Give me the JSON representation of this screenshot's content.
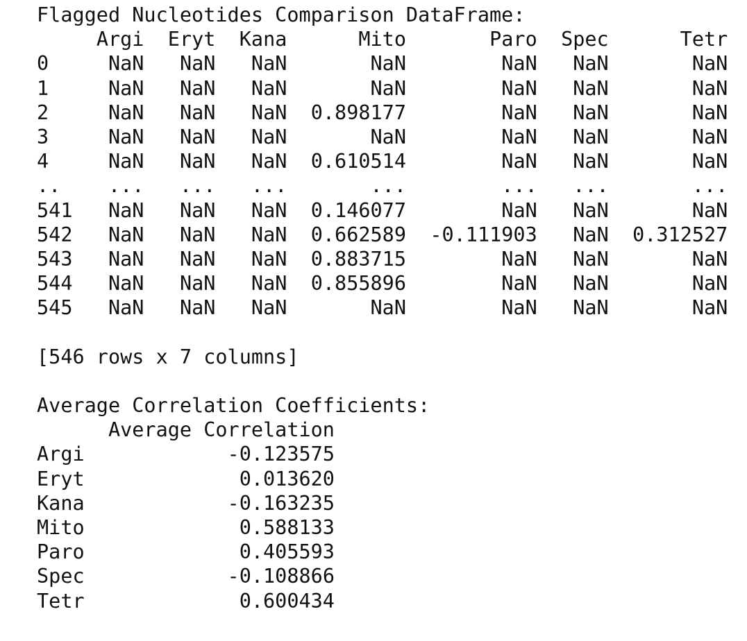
{
  "output": {
    "clipped_top_line": "",
    "df_title": "Flagged Nucleotides Comparison DataFrame:",
    "df_columns": [
      "Argi",
      "Eryt",
      "Kana",
      "Mito",
      "Paro",
      "Spec",
      "Tetr"
    ],
    "df_rows": [
      [
        "0",
        "NaN",
        "NaN",
        "NaN",
        "NaN",
        "NaN",
        "NaN",
        "NaN"
      ],
      [
        "1",
        "NaN",
        "NaN",
        "NaN",
        "NaN",
        "NaN",
        "NaN",
        "NaN"
      ],
      [
        "2",
        "NaN",
        "NaN",
        "NaN",
        "0.898177",
        "NaN",
        "NaN",
        "NaN"
      ],
      [
        "3",
        "NaN",
        "NaN",
        "NaN",
        "NaN",
        "NaN",
        "NaN",
        "NaN"
      ],
      [
        "4",
        "NaN",
        "NaN",
        "NaN",
        "0.610514",
        "NaN",
        "NaN",
        "NaN"
      ],
      [
        "..",
        "...",
        "...",
        "...",
        "...",
        "...",
        "...",
        "..."
      ],
      [
        "541",
        "NaN",
        "NaN",
        "NaN",
        "0.146077",
        "NaN",
        "NaN",
        "NaN"
      ],
      [
        "542",
        "NaN",
        "NaN",
        "NaN",
        "0.662589",
        "-0.111903",
        "NaN",
        "0.312527"
      ],
      [
        "543",
        "NaN",
        "NaN",
        "NaN",
        "0.883715",
        "NaN",
        "NaN",
        "NaN"
      ],
      [
        "544",
        "NaN",
        "NaN",
        "NaN",
        "0.855896",
        "NaN",
        "NaN",
        "NaN"
      ],
      [
        "545",
        "NaN",
        "NaN",
        "NaN",
        "NaN",
        "NaN",
        "NaN",
        "NaN"
      ]
    ],
    "df_shape": "[546 rows x 7 columns]",
    "avg_title": "Average Correlation Coefficients:",
    "avg_header": "Average Correlation",
    "avg_rows": [
      [
        "Argi",
        "-0.123575"
      ],
      [
        "Eryt",
        "0.013620"
      ],
      [
        "Kana",
        "-0.163235"
      ],
      [
        "Mito",
        "0.588133"
      ],
      [
        "Paro",
        "0.405593"
      ],
      [
        "Spec",
        "-0.108866"
      ],
      [
        "Tetr",
        "0.600434"
      ]
    ]
  }
}
